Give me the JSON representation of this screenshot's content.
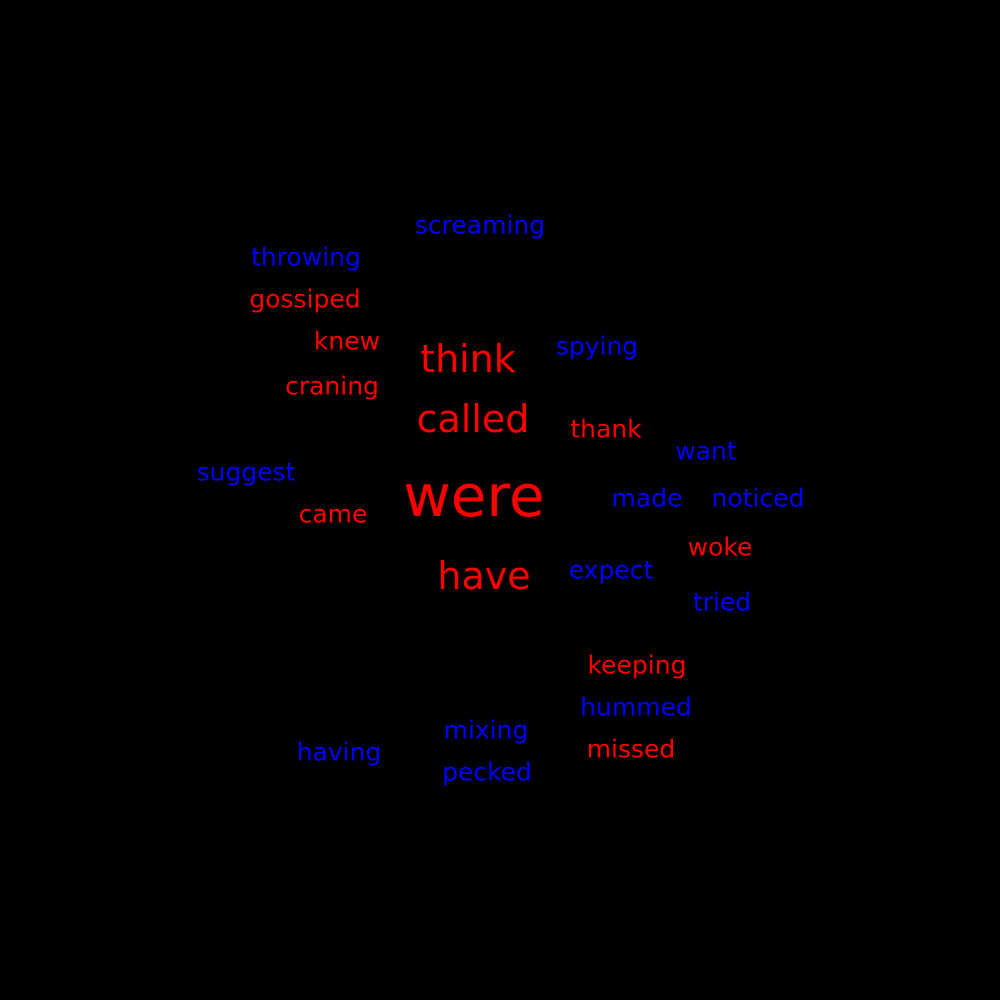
{
  "colors": {
    "background": "#000000",
    "red": "#ff0000",
    "blue": "#0000ff"
  },
  "words": [
    {
      "text": "throwing",
      "color": "blue"
    },
    {
      "text": "screaming",
      "color": "blue"
    },
    {
      "text": "gossiped",
      "color": "red"
    },
    {
      "text": "knew",
      "color": "red"
    },
    {
      "text": "think",
      "color": "red"
    },
    {
      "text": "spying",
      "color": "blue"
    },
    {
      "text": "craning",
      "color": "red"
    },
    {
      "text": "called",
      "color": "red"
    },
    {
      "text": "thank",
      "color": "red"
    },
    {
      "text": "want",
      "color": "blue"
    },
    {
      "text": "suggest",
      "color": "blue"
    },
    {
      "text": "were",
      "color": "red"
    },
    {
      "text": "made",
      "color": "blue"
    },
    {
      "text": "noticed",
      "color": "blue"
    },
    {
      "text": "came",
      "color": "red"
    },
    {
      "text": "woke",
      "color": "red"
    },
    {
      "text": "have",
      "color": "red"
    },
    {
      "text": "expect",
      "color": "blue"
    },
    {
      "text": "tried",
      "color": "blue"
    },
    {
      "text": "keeping",
      "color": "red"
    },
    {
      "text": "hummed",
      "color": "blue"
    },
    {
      "text": "mixing",
      "color": "blue"
    },
    {
      "text": "missed",
      "color": "red"
    },
    {
      "text": "having",
      "color": "blue"
    },
    {
      "text": "pecked",
      "color": "blue"
    }
  ]
}
